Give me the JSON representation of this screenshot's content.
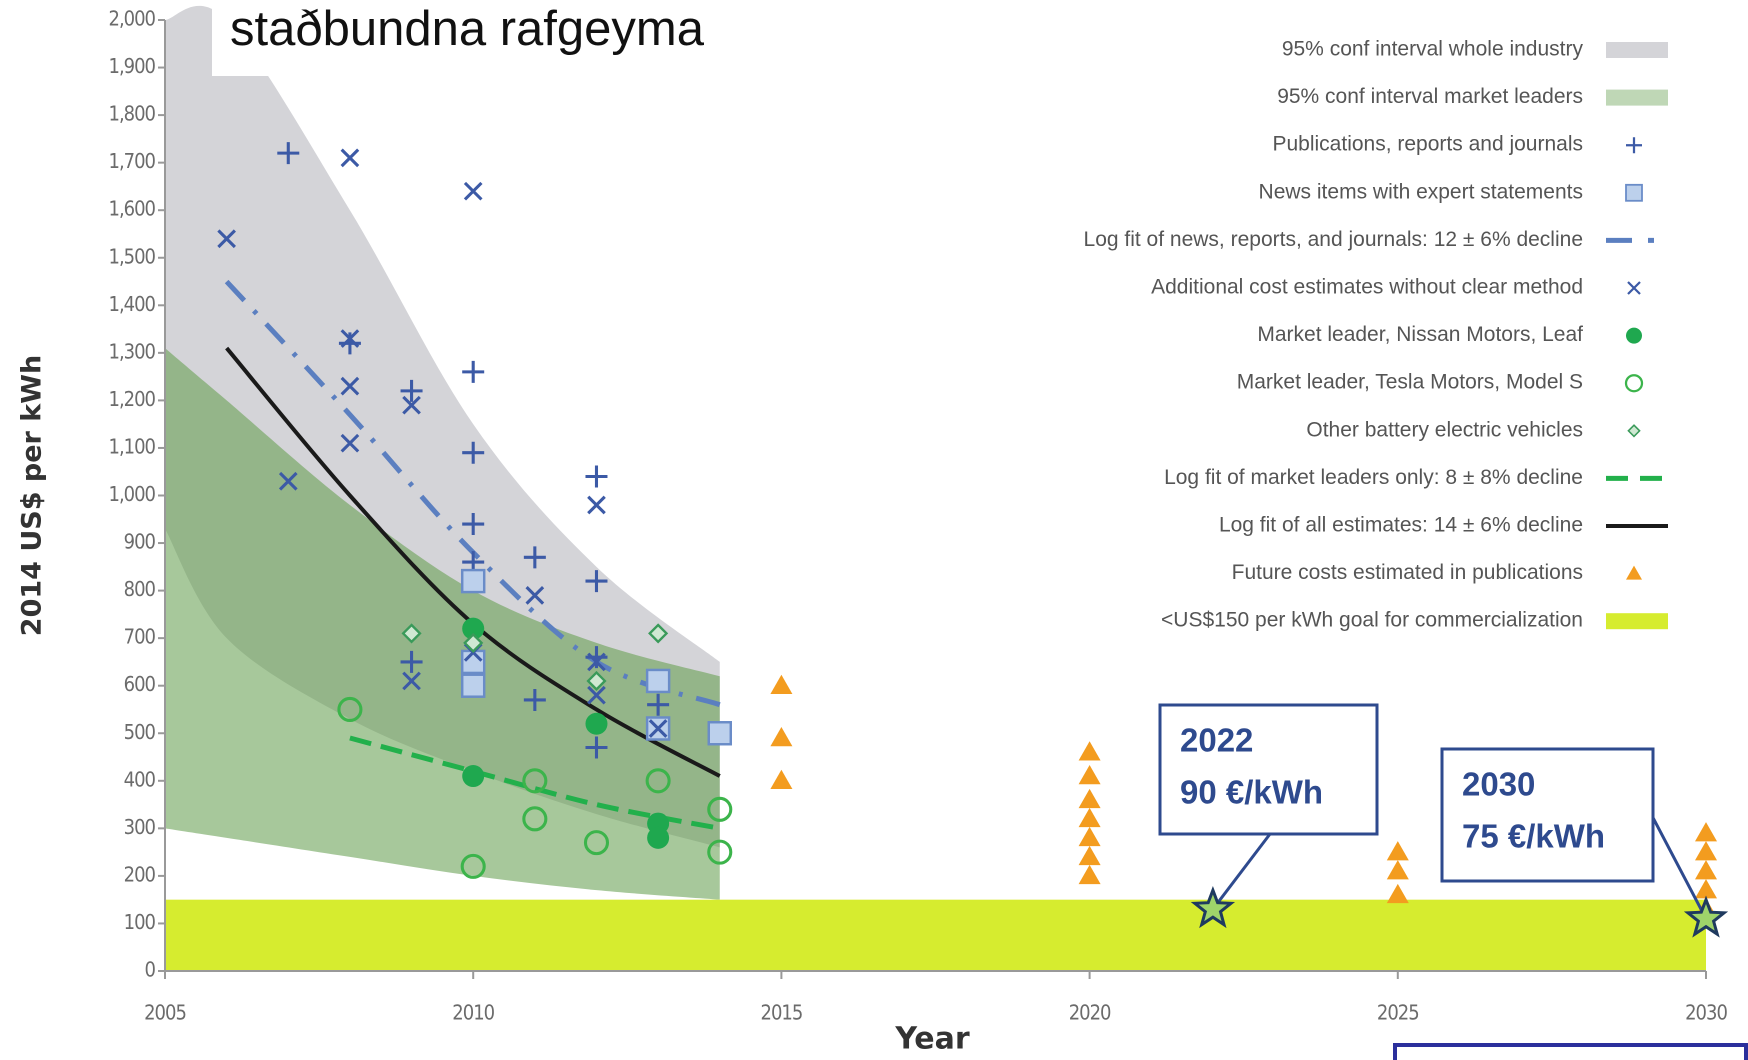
{
  "chart_data": {
    "type": "scatter",
    "title": "staðbundna rafgeyma",
    "xlabel": "Year",
    "ylabel": "2014 US$ per kWh",
    "xlim": [
      2005,
      2030
    ],
    "xticks": [
      2005,
      2010,
      2015,
      2020,
      2025,
      2030
    ],
    "ylim": [
      0,
      2000
    ],
    "yticks": [
      0,
      100,
      200,
      300,
      400,
      500,
      600,
      700,
      800,
      900,
      {
        "value": 1000,
        "label": "1,000"
      },
      {
        "value": 1100,
        "label": "1,100"
      },
      {
        "value": 1200,
        "label": "1,200"
      },
      {
        "value": 1300,
        "label": "1,300"
      },
      {
        "value": 1400,
        "label": "1,400"
      },
      {
        "value": 1500,
        "label": "1,500"
      },
      {
        "value": 1600,
        "label": "1,600"
      },
      {
        "value": 1700,
        "label": "1,700"
      },
      {
        "value": 1800,
        "label": "1,800"
      },
      {
        "value": 1900,
        "label": "1,900"
      },
      {
        "value": 2000,
        "label": "2,000"
      }
    ],
    "series": [
      {
        "name": "95% conf interval whole industry",
        "kind": "band",
        "color": "#d4d4d8",
        "x": [
          2005,
          2006,
          2008,
          2010,
          2012,
          2014
        ],
        "upper": [
          2000,
          2000,
          1600,
          1150,
          850,
          650
        ],
        "lower": [
          930,
          700,
          530,
          420,
          330,
          260
        ]
      },
      {
        "name": "95% conf interval market leaders",
        "kind": "band",
        "color": "#5f9a48",
        "x": [
          2005,
          2006,
          2008,
          2010,
          2012,
          2014
        ],
        "upper": [
          1310,
          1200,
          980,
          800,
          690,
          620
        ],
        "lower": [
          300,
          280,
          240,
          200,
          170,
          150
        ]
      },
      {
        "name": "Publications, reports and journals",
        "kind": "plus",
        "color": "#3c5aa6",
        "x": [
          2007,
          2008,
          2009,
          2009,
          2010,
          2010,
          2010,
          2010,
          2011,
          2011,
          2012,
          2012,
          2012,
          2012,
          2013
        ],
        "values": [
          1720,
          1320,
          1220,
          650,
          1260,
          1090,
          940,
          860,
          870,
          570,
          1040,
          820,
          660,
          470,
          560
        ]
      },
      {
        "name": "News items with expert statements",
        "kind": "square",
        "color": "#6a8cc8",
        "x": [
          2010,
          2010,
          2010,
          2013,
          2013,
          2014
        ],
        "values": [
          820,
          600,
          650,
          610,
          510,
          500
        ]
      },
      {
        "name": "Log fit of news, reports, and journals: 12 ± 6% decline",
        "kind": "dashdot",
        "color": "#5b7fc0",
        "x": [
          2006,
          2008,
          2010,
          2012,
          2014
        ],
        "values": [
          1450,
          1170,
          880,
          650,
          560
        ]
      },
      {
        "name": "Additional cost estimates without clear method",
        "kind": "cross",
        "color": "#3c5aa6",
        "x": [
          2006,
          2007,
          2008,
          2008,
          2008,
          2008,
          2009,
          2009,
          2010,
          2010,
          2011,
          2012,
          2012,
          2012,
          2013
        ],
        "values": [
          1540,
          1030,
          1710,
          1330,
          1230,
          1110,
          1190,
          610,
          1640,
          670,
          790,
          980,
          650,
          580,
          510
        ]
      },
      {
        "name": "Market leader, Nissan Motors, Leaf",
        "kind": "dot",
        "color": "#1fa84f",
        "x": [
          2010,
          2010,
          2012,
          2013,
          2013
        ],
        "values": [
          720,
          410,
          520,
          310,
          280
        ]
      },
      {
        "name": "Market leader, Tesla Motors, Model S",
        "kind": "circle",
        "color": "#3cb44b",
        "x": [
          2008,
          2010,
          2011,
          2011,
          2012,
          2013,
          2014,
          2014
        ],
        "values": [
          550,
          220,
          400,
          320,
          270,
          400,
          340,
          250
        ]
      },
      {
        "name": "Other battery electric vehicles",
        "kind": "diamond",
        "color": "#3a9a5a",
        "x": [
          2009,
          2010,
          2012,
          2013
        ],
        "values": [
          710,
          690,
          610,
          710
        ]
      },
      {
        "name": "Log fit of market leaders only: 8 ± 8% decline",
        "kind": "dashed",
        "color": "#22b04b",
        "x": [
          2008,
          2010,
          2012,
          2014
        ],
        "values": [
          490,
          420,
          350,
          300
        ]
      },
      {
        "name": "Log fit of all estimates: 14 ± 6% decline",
        "kind": "line",
        "color": "#1a1a1a",
        "x": [
          2006,
          2008,
          2010,
          2012,
          2014
        ],
        "values": [
          1310,
          1000,
          730,
          550,
          410
        ]
      },
      {
        "name": "Future costs estimated in publications",
        "kind": "triangle",
        "color": "#f39c1f",
        "x": [
          2015,
          2015,
          2015,
          2020,
          2020,
          2020,
          2020,
          2020,
          2020,
          2020,
          2025,
          2025,
          2025,
          2030,
          2030,
          2030,
          2030,
          2030
        ],
        "values": [
          600,
          490,
          400,
          460,
          410,
          360,
          320,
          280,
          240,
          200,
          250,
          210,
          160,
          290,
          250,
          210,
          170,
          130
        ]
      },
      {
        "name": "<US$150 per kWh goal for commercialization",
        "kind": "goal",
        "color": "#d6ec2f",
        "values": [
          150
        ]
      }
    ],
    "annotations": [
      {
        "year_label": "2022",
        "price_label": "90 €/kWh",
        "x": 2022,
        "y": 130
      },
      {
        "year_label": "2030",
        "price_label": "75 €/kWh",
        "x": 2030,
        "y": 110
      }
    ]
  }
}
